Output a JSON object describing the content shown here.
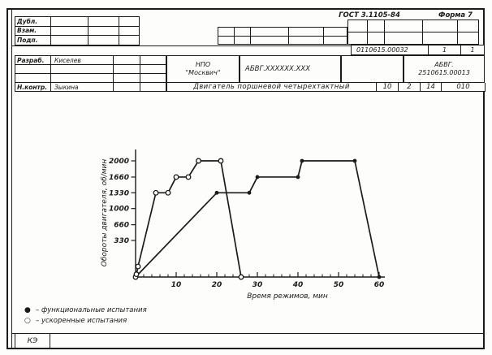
{
  "form": {
    "standard": "ГОСТ 3.1105-84",
    "form_no": "Форма 7",
    "doc_type_code": "КЭ",
    "copy_labels": [
      "Дубл.",
      "Взам.",
      "Подп."
    ],
    "doc_number": "0110615.00032",
    "sheet": "1",
    "sheets": "1",
    "roles": [
      {
        "role": "Разраб.",
        "name": "Киселев"
      },
      {
        "role": "",
        "name": ""
      },
      {
        "role": "",
        "name": ""
      },
      {
        "role": "Н.контр.",
        "name": "Зыкина"
      }
    ],
    "org_line1": "НПО",
    "org_line2": "\"Москвич\"",
    "part_code": "АБВГ.ХХХХХХ.ХХХ",
    "doc_code_line1": "АБВГ.",
    "doc_code_line2": "2510615.00013",
    "title": "Двигатель поршневой четырехтактный",
    "cells": [
      "10",
      "2",
      "14",
      "010"
    ]
  },
  "chart_data": {
    "type": "line",
    "title": "",
    "xlabel": "Время режимов, мин",
    "ylabel": "Обороты двигателя, об/мин",
    "x_ticks": [
      10,
      20,
      30,
      40,
      50,
      60
    ],
    "y_ticks": [
      330,
      660,
      1000,
      1330,
      1660,
      2000
    ],
    "xlim": [
      0,
      62
    ],
    "ylim": [
      0,
      2100
    ],
    "grid": false,
    "legend_position": "bottom-left",
    "series": [
      {
        "name": "функциональные испытания",
        "marker": "filled-circle",
        "points": [
          [
            0,
            0
          ],
          [
            20,
            1330
          ],
          [
            28,
            1330
          ],
          [
            30,
            1660
          ],
          [
            40,
            1660
          ],
          [
            41,
            2000
          ],
          [
            54,
            2000
          ],
          [
            60,
            0
          ]
        ]
      },
      {
        "name": "ускоренные испытания",
        "marker": "open-circle",
        "points": [
          [
            0,
            0
          ],
          [
            0.2,
            25
          ],
          [
            0.6,
            95
          ],
          [
            5,
            1330
          ],
          [
            8,
            1330
          ],
          [
            10,
            1660
          ],
          [
            13,
            1660
          ],
          [
            15.5,
            2000
          ],
          [
            21,
            2000
          ],
          [
            26,
            0
          ]
        ]
      }
    ],
    "legend": [
      {
        "symbol": "●",
        "label": "– функциональные испытания"
      },
      {
        "symbol": "○",
        "label": "– ускоренные испытания"
      }
    ]
  }
}
